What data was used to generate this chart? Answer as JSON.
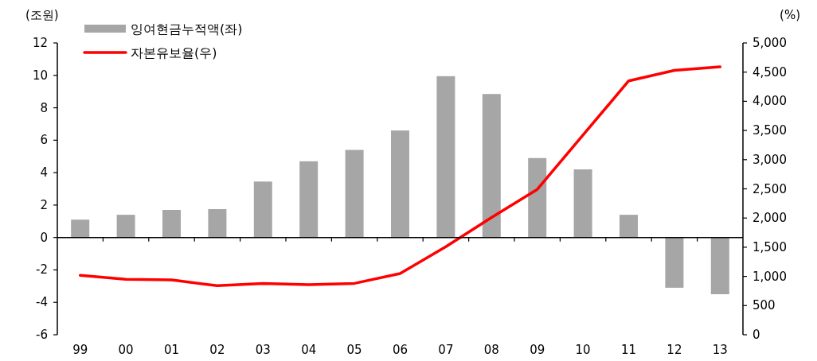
{
  "chart_data": {
    "type": "bar",
    "ylabel": "(조원)",
    "y2label": "(%)",
    "categories": [
      "99",
      "00",
      "01",
      "02",
      "03",
      "04",
      "05",
      "06",
      "07",
      "08",
      "09",
      "10",
      "11",
      "12",
      "13"
    ],
    "series": [
      {
        "name": "잉여현금누적액(좌)",
        "color": "#a6a6a6",
        "values": [
          1.1,
          1.4,
          1.7,
          1.75,
          3.45,
          4.7,
          5.4,
          6.6,
          9.95,
          8.85,
          4.9,
          4.2,
          1.4,
          -3.1,
          -3.5
        ]
      },
      {
        "name": "자본유보율(우)",
        "type": "line",
        "axis": "y2",
        "color": "#ff0000",
        "values": [
          1020,
          950,
          940,
          840,
          880,
          860,
          880,
          1050,
          1510,
          2010,
          2490,
          3420,
          4350,
          4530,
          4590
        ]
      }
    ],
    "ylim": [
      -6,
      12
    ],
    "yticks": [
      -6,
      -4,
      -2,
      0,
      2,
      4,
      6,
      8,
      10,
      12
    ],
    "y2lim": [
      0,
      5000
    ],
    "y2ticks": [
      0,
      500,
      {
        "value": 1000,
        "label": "1,000"
      },
      {
        "value": 1500,
        "label": "1,500"
      },
      {
        "value": 2000,
        "label": "2,000"
      },
      {
        "value": 2500,
        "label": "2,500"
      },
      {
        "value": 3000,
        "label": "3,000"
      },
      {
        "value": 3500,
        "label": "3,500"
      },
      {
        "value": 4000,
        "label": "4,000"
      },
      {
        "value": 4500,
        "label": "4,500"
      },
      {
        "value": 5000,
        "label": "5,000"
      }
    ],
    "legend": "top left"
  }
}
